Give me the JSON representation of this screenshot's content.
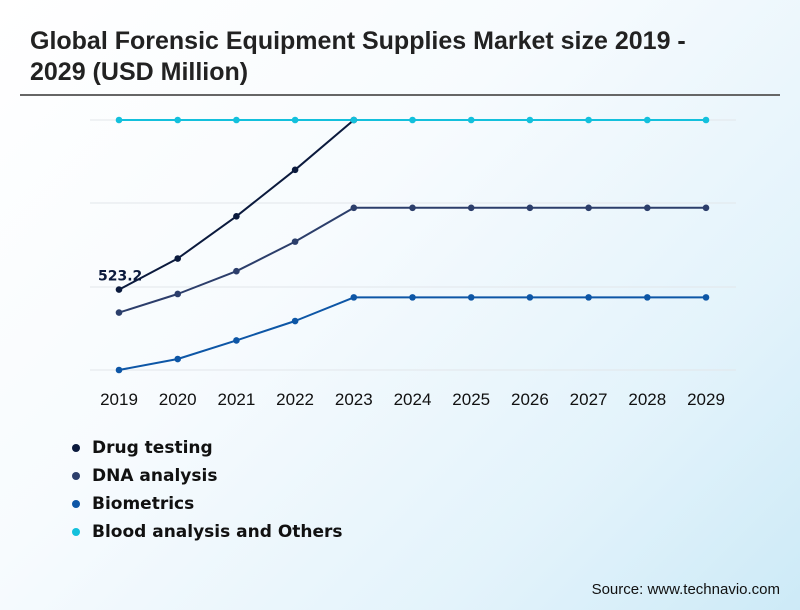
{
  "title": "Global Forensic Equipment Supplies Market size 2019 - 2029 (USD Million)",
  "source": "Source: www.technavio.com",
  "chart_data": {
    "type": "line",
    "title": "Global Forensic Equipment Supplies Market size 2019 - 2029 (USD Million)",
    "xlabel": "",
    "ylabel": "",
    "categories": [
      "2019",
      "2020",
      "2021",
      "2022",
      "2023",
      "2024",
      "2025",
      "2026",
      "2027",
      "2028",
      "2029"
    ],
    "series": [
      {
        "name": "Drug testing",
        "color": "#0b1a3d",
        "values": [
          523.2,
          560,
          610,
          665,
          724,
          null,
          null,
          null,
          null,
          null,
          null
        ]
      },
      {
        "name": "DNA analysis",
        "color": "#2c3e6b",
        "values": [
          496,
          518,
          545,
          580,
          620,
          620,
          620,
          620,
          620,
          620,
          620
        ]
      },
      {
        "name": "Biometrics",
        "color": "#0d56a6",
        "values": [
          428,
          441,
          463,
          486,
          514,
          514,
          514,
          514,
          514,
          514,
          514
        ]
      },
      {
        "name": "Blood analysis and Others",
        "color": "#13c0dc",
        "values": [
          724,
          724,
          724,
          724,
          724,
          724,
          724,
          724,
          724,
          724,
          724
        ]
      }
    ],
    "data_labels": [
      {
        "series": "Drug testing",
        "index": 0,
        "text": "523.2"
      }
    ],
    "ylim": [
      420,
      730
    ],
    "grid": true,
    "legend_position": "bottom-left"
  }
}
